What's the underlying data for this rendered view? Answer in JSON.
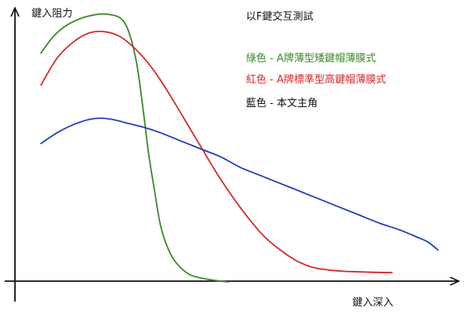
{
  "chart_data": {
    "type": "line",
    "title": "以F鍵交互測試",
    "xlabel": "鍵入深入",
    "ylabel": "鍵入阻力",
    "xlim": [
      0,
      100
    ],
    "ylim": [
      0,
      100
    ],
    "grid": false,
    "legend_position": "top-right",
    "series": [
      {
        "name": "綠色 - A牌薄型矮鍵帽薄膜式",
        "color": "#3a8a2a",
        "x": [
          0,
          3,
          6,
          10,
          14,
          17,
          20,
          22,
          24,
          25.5,
          27,
          28.5,
          30,
          32,
          34,
          37,
          40,
          44,
          47
        ],
        "y": [
          86,
          92,
          96,
          99,
          100.5,
          100.5,
          99,
          94,
          82,
          66,
          48,
          34,
          21,
          12,
          7,
          3,
          1.5,
          0.5,
          0
        ]
      },
      {
        "name": "紅色 - A牌標準型高鍵帽薄膜式",
        "color": "#d42a2a",
        "x": [
          0,
          4,
          8,
          12,
          16,
          20,
          24,
          28,
          32,
          36,
          40,
          44,
          48,
          52,
          56,
          60,
          64,
          68,
          72,
          76,
          80,
          84,
          88
        ],
        "y": [
          74,
          84,
          90,
          93.5,
          94,
          92,
          87,
          80,
          71,
          61,
          51,
          41,
          32,
          24,
          17,
          12,
          8,
          5.5,
          4.5,
          4,
          3.8,
          3.6,
          3.5
        ]
      },
      {
        "name": "藍色 - 本文主角",
        "color": "#1f3fbf",
        "x": [
          0,
          4,
          8,
          12,
          15,
          18,
          22,
          26,
          30,
          35,
          40,
          45,
          50,
          55,
          60,
          65,
          70,
          75,
          80,
          85,
          90,
          94,
          97,
          99.5
        ],
        "y": [
          52,
          56,
          59,
          61,
          61.5,
          61,
          59.5,
          58,
          56,
          53,
          50,
          47,
          43,
          40,
          37,
          34,
          31,
          28,
          25,
          22,
          19.5,
          17,
          15,
          12
        ]
      }
    ]
  }
}
